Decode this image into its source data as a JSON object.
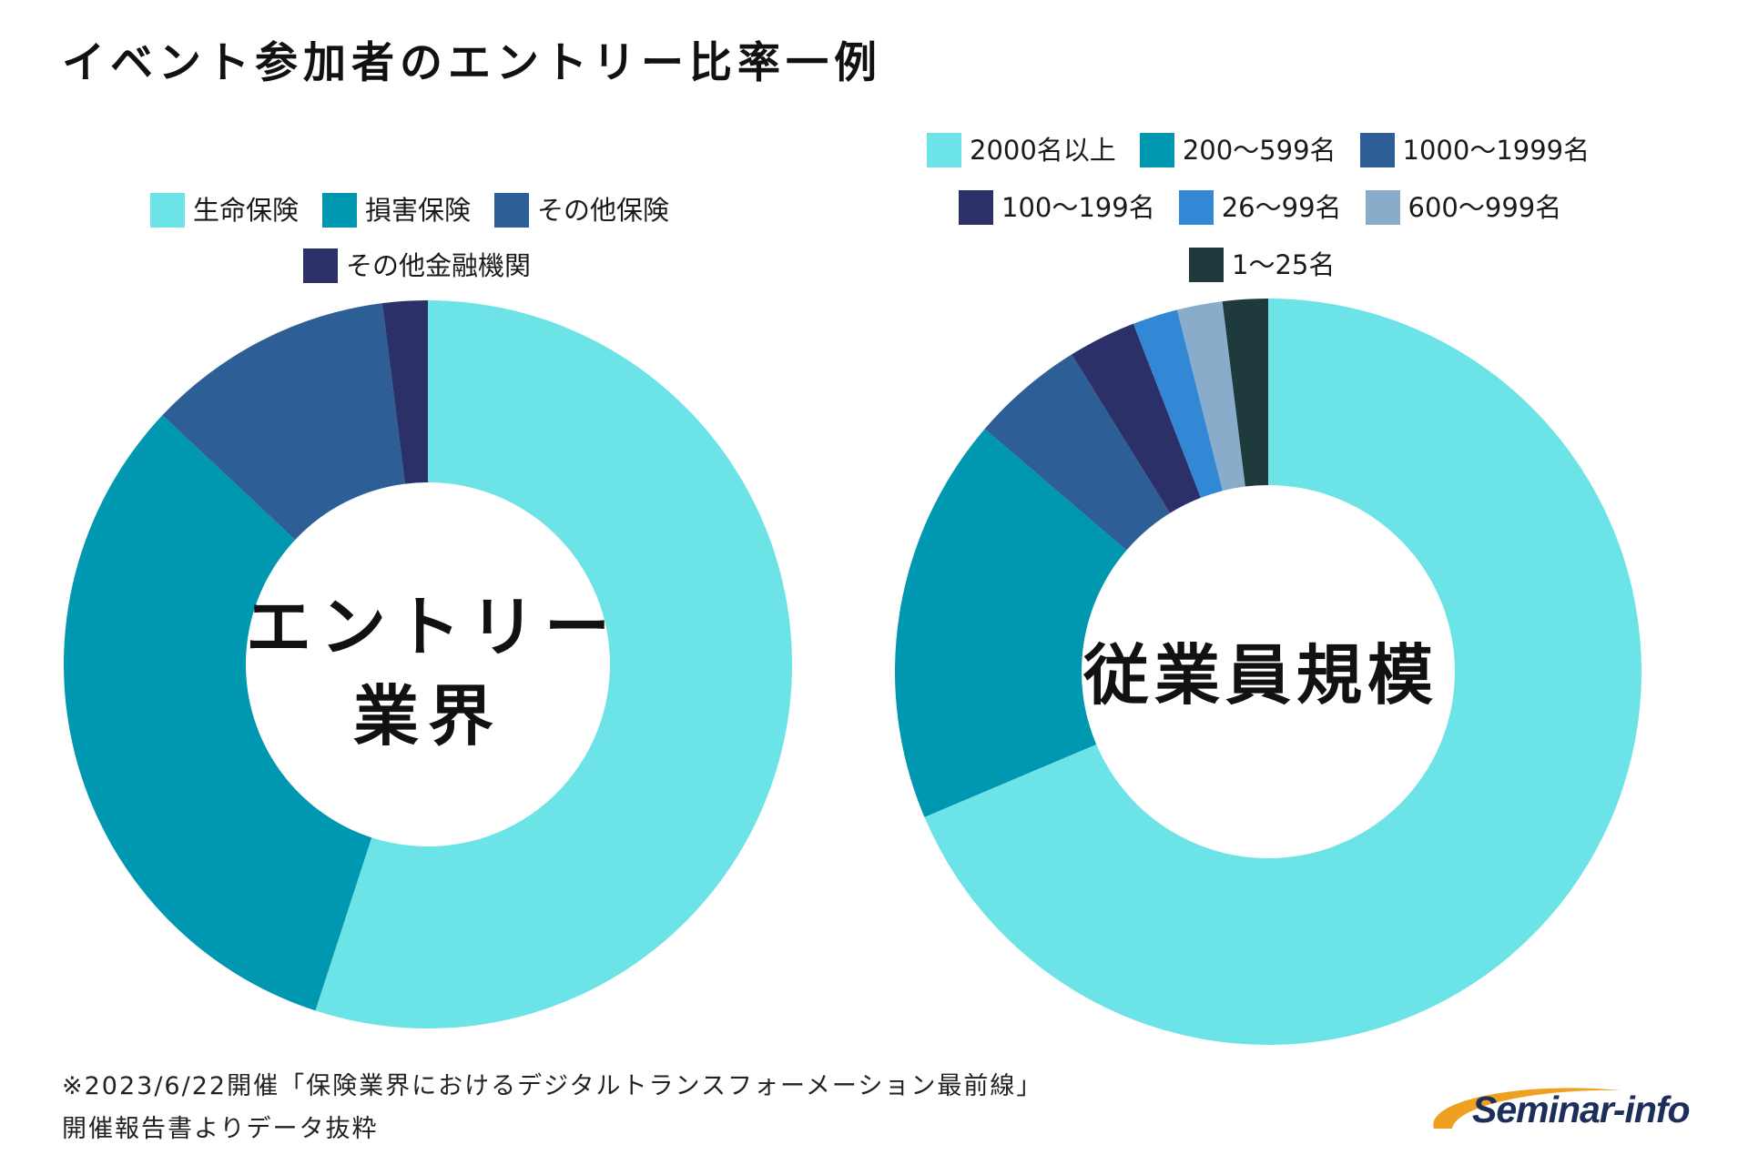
{
  "title": "イベント参加者のエントリー比率一例",
  "chart_data": [
    {
      "type": "pie",
      "variant": "donut",
      "center_label_lines": [
        "エントリー",
        "業界"
      ],
      "legend": [
        "生命保険",
        "損害保険",
        "その他保険",
        "その他金融機関"
      ],
      "categories": [
        "生命保険",
        "損害保険",
        "その他保険",
        "その他金融機関"
      ],
      "values": [
        55,
        32,
        11,
        2
      ],
      "colors": [
        "#6ce3e6",
        "#0097b0",
        "#2e5e96",
        "#2c3068"
      ]
    },
    {
      "type": "pie",
      "variant": "donut",
      "center_label_lines": [
        "従業員規模"
      ],
      "legend": [
        "2000名以上",
        "200〜599名",
        "1000〜1999名",
        "100〜199名",
        "26〜99名",
        "600〜999名",
        "1〜25名"
      ],
      "categories": [
        "2000名以上",
        "200〜599名",
        "1000〜1999名",
        "100〜199名",
        "26〜99名",
        "600〜999名",
        "1〜25名"
      ],
      "values": [
        70,
        18,
        5,
        3,
        2,
        2,
        2
      ],
      "colors": [
        "#6ce3e6",
        "#0097b0",
        "#2e5e96",
        "#2c3068",
        "#3388d6",
        "#8aaccb",
        "#1f3a3d"
      ]
    }
  ],
  "footnote": {
    "line1": "※2023/6/22開催「保険業界におけるデジタルトランスフォーメーション最前線」",
    "line2": "開催報告書よりデータ抜粋"
  },
  "logo": {
    "text": "Seminar-info",
    "swoosh_color": "#f0a020"
  }
}
